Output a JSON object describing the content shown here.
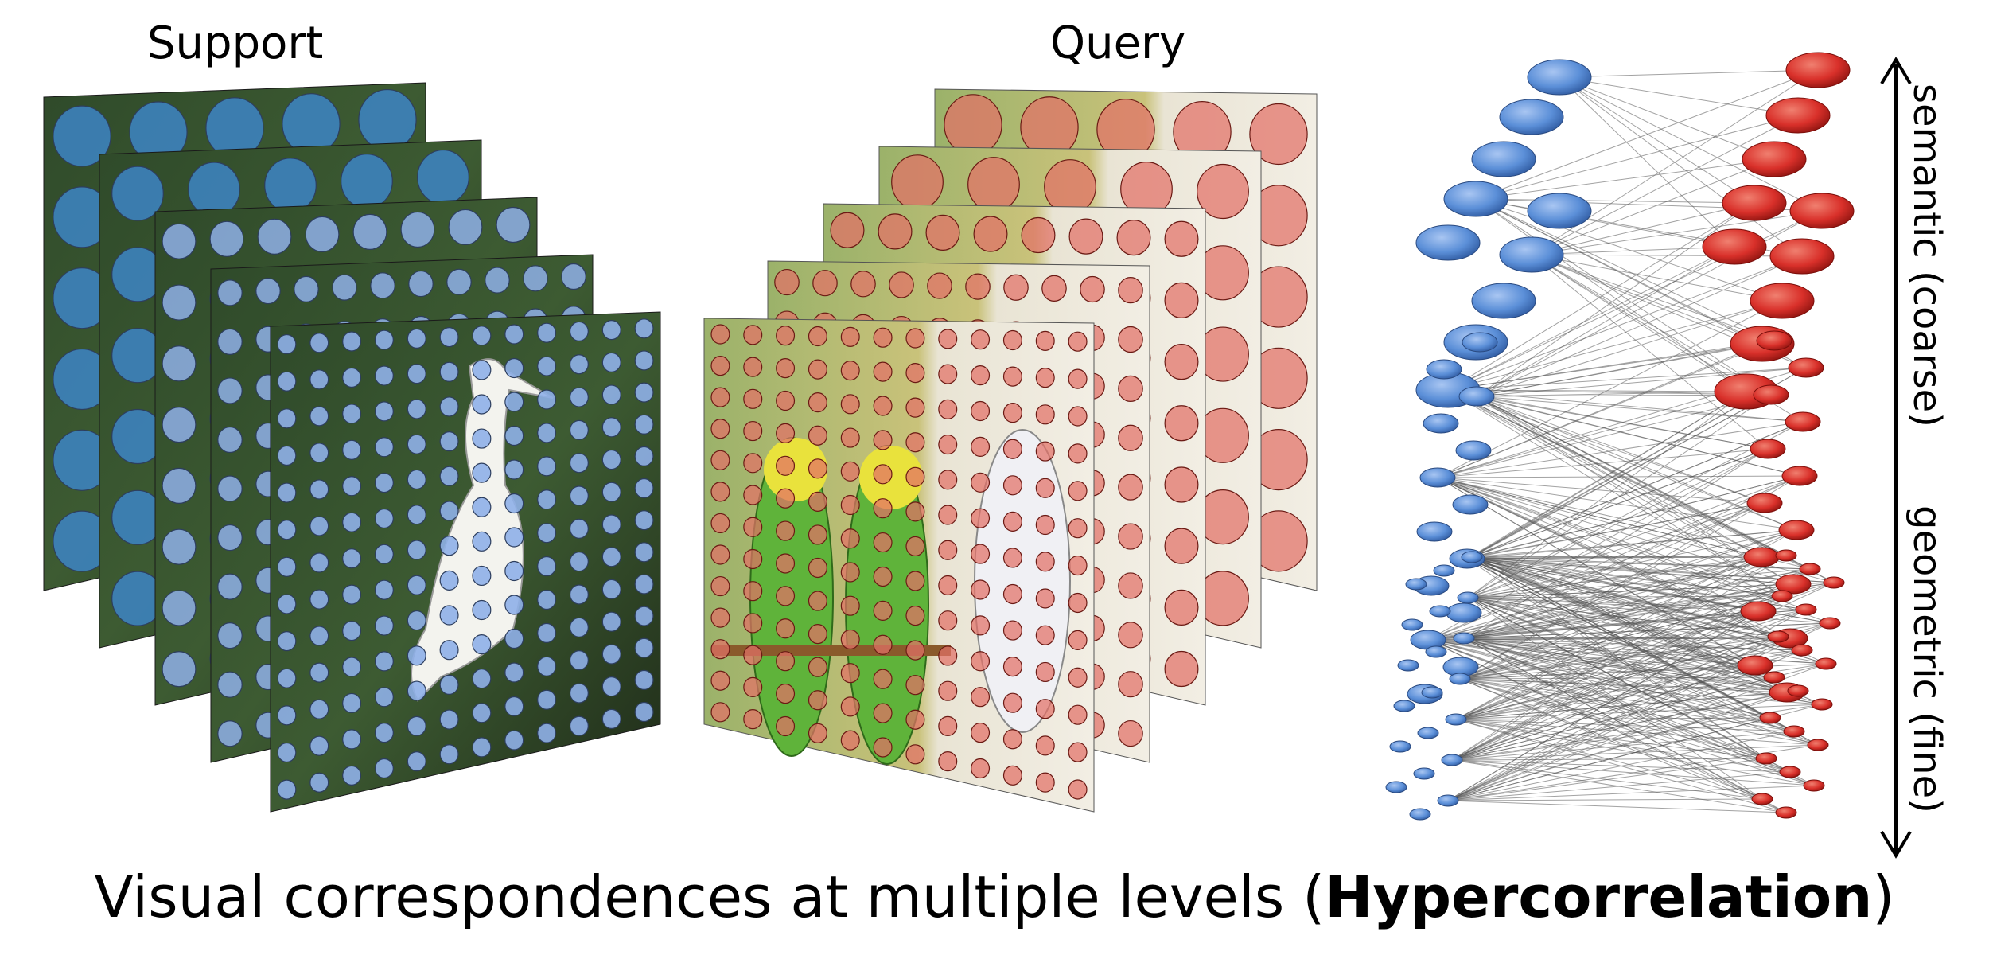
{
  "titles": {
    "support": "Support",
    "query": "Query"
  },
  "caption": {
    "prefix": "Visual correspondences at multiple levels (",
    "bold": "Hypercorrelation",
    "suffix": ")"
  },
  "axis": {
    "top_label": "semantic (coarse)",
    "bottom_label": "geometric (fine)"
  },
  "colors": {
    "support_dot": "#8fb0e8",
    "query_dot": "#e27066",
    "node_blue": "#5b8fd8",
    "node_red": "#d9302a"
  }
}
